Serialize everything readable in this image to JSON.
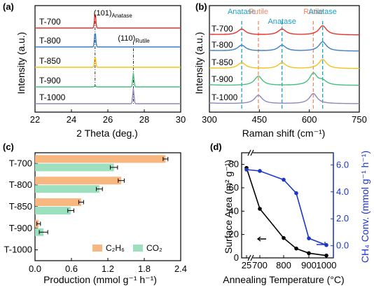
{
  "colors": {
    "T-700": "#e8312a",
    "T-800": "#3d7fc3",
    "T-850": "#f2c21b",
    "T-900": "#45c07a",
    "T-1000": "#8f87bd",
    "anatase_marker": "#1f9fc8",
    "rutile_marker": "#f08a6b",
    "c2h6": "#f7b77f",
    "co2": "#9de0c0",
    "blue_axis": "#1b36c9"
  },
  "chart_data": [
    {
      "id": "a",
      "type": "line",
      "panel_label": "(a)",
      "xlabel": "2 Theta (deg.)",
      "ylabel": "Intensity (a.u.)",
      "xlim": [
        22,
        30
      ],
      "xticks": [
        "22",
        "24",
        "26",
        "28",
        "30"
      ],
      "series": [
        {
          "name": "T-700",
          "peaks": [
            {
              "x": 25.3,
              "height": 1.0
            }
          ]
        },
        {
          "name": "T-800",
          "peaks": [
            {
              "x": 25.3,
              "height": 1.0
            }
          ]
        },
        {
          "name": "T-850",
          "peaks": [
            {
              "x": 25.3,
              "height": 0.7
            }
          ]
        },
        {
          "name": "T-900",
          "peaks": [
            {
              "x": 25.3,
              "height": 0.1
            },
            {
              "x": 27.4,
              "height": 0.9
            }
          ]
        },
        {
          "name": "T-1000",
          "peaks": [
            {
              "x": 27.4,
              "height": 1.0
            }
          ]
        }
      ],
      "annotations": [
        {
          "text": "(101)",
          "sub": "Anatase",
          "x": 25.3
        },
        {
          "text": "(110)",
          "sub": "Rutile",
          "x": 27.4
        }
      ]
    },
    {
      "id": "b",
      "type": "line",
      "panel_label": "(b)",
      "xlabel": "Raman shift (cm⁻¹)",
      "ylabel": "Intensity (a.u.)",
      "xlim": [
        300,
        750
      ],
      "xticks": [
        "300",
        "450",
        "600",
        "750"
      ],
      "reference_lines": [
        {
          "label": "Anatase",
          "x": 397
        },
        {
          "label": "Rutile",
          "x": 447
        },
        {
          "label": "Anatase",
          "x": 518
        },
        {
          "label": "Rutile",
          "x": 612
        },
        {
          "label": "Anatase",
          "x": 640
        }
      ],
      "series": [
        {
          "name": "T-700",
          "peaks": [
            {
              "x": 397,
              "height": 0.35
            },
            {
              "x": 518,
              "height": 0.35
            },
            {
              "x": 640,
              "height": 0.55
            }
          ]
        },
        {
          "name": "T-800",
          "peaks": [
            {
              "x": 397,
              "height": 0.35
            },
            {
              "x": 518,
              "height": 0.35
            },
            {
              "x": 640,
              "height": 0.55
            }
          ]
        },
        {
          "name": "T-850",
          "peaks": [
            {
              "x": 397,
              "height": 0.35
            },
            {
              "x": 518,
              "height": 0.35
            },
            {
              "x": 640,
              "height": 0.55
            }
          ]
        },
        {
          "name": "T-900",
          "peaks": [
            {
              "x": 447,
              "height": 0.55
            },
            {
              "x": 612,
              "height": 0.7
            },
            {
              "x": 640,
              "height": 0.25
            }
          ]
        },
        {
          "name": "T-1000",
          "peaks": [
            {
              "x": 447,
              "height": 0.5
            },
            {
              "x": 612,
              "height": 0.6
            }
          ]
        }
      ]
    },
    {
      "id": "c",
      "type": "bar",
      "orientation": "horizontal",
      "panel_label": "(c)",
      "xlabel": "Production (mmol g⁻¹ h⁻¹)",
      "xlim": [
        0,
        2.4
      ],
      "xticks": [
        "0.0",
        "0.6",
        "1.2",
        "1.8",
        "2.4"
      ],
      "categories": [
        "T-700",
        "T-800",
        "T-850",
        "T-900",
        "T-1000"
      ],
      "series": [
        {
          "name": "C₂H₆",
          "values": [
            2.15,
            1.42,
            0.76,
            0.06,
            0.0
          ],
          "errors": [
            0.04,
            0.05,
            0.04,
            0.03,
            0.0
          ]
        },
        {
          "name": "CO₂",
          "values": [
            1.3,
            1.06,
            0.59,
            0.14,
            0.0
          ],
          "errors": [
            0.06,
            0.05,
            0.05,
            0.07,
            0.0
          ]
        }
      ],
      "legend": "bottom-right"
    },
    {
      "id": "d",
      "type": "line",
      "panel_label": "(d)",
      "xlabel": "Annealing Temperature (°C)",
      "ylabel": "Surface Area (m² g⁻¹)",
      "y2label": "CH₄ Conv. (mmol g⁻¹ h⁻¹)",
      "x": [
        "25",
        "700",
        "800",
        "850",
        "900",
        "1000"
      ],
      "xticks": [
        "25",
        "700",
        "800",
        "900",
        "1000"
      ],
      "ylim": [
        0,
        90
      ],
      "yticks": [
        "0",
        "20",
        "40",
        "60",
        "80"
      ],
      "y2lim": [
        -0.9,
        6.9
      ],
      "y2ticks": [
        "0.0",
        "2.0",
        "4.0",
        "6.0"
      ],
      "series": [
        {
          "name": "Surface Area",
          "axis": "left",
          "values": [
            77,
            42,
            17,
            8,
            4,
            2
          ]
        },
        {
          "name": "CH₄ Conv.",
          "axis": "right",
          "values": [
            5.65,
            5.55,
            4.9,
            3.9,
            0.55,
            0.05
          ]
        }
      ],
      "axis_break": true
    }
  ]
}
